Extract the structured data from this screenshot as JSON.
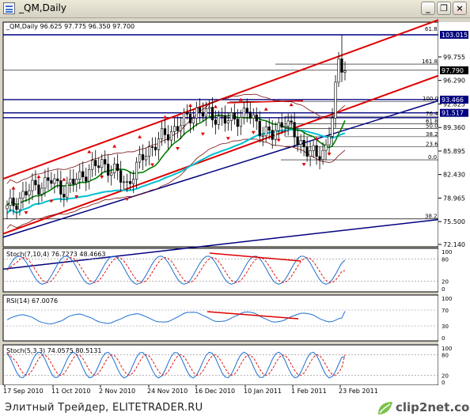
{
  "window": {
    "title": "_QM,Daily",
    "buttons": [
      "minimize",
      "restore",
      "close"
    ]
  },
  "footer": {
    "left_text": "Элитный Трейдер, ELITETRADER.RU",
    "logo_text": "clip2net.com"
  },
  "chart_data": {
    "type": "candlestick",
    "title": "_QM,Daily  96.625 97.775 96.350 97.700",
    "symbol": "_QM",
    "timeframe": "Daily",
    "ohlc": {
      "open": 96.625,
      "high": 97.775,
      "low": 96.35,
      "close": 97.7
    },
    "y_axis": {
      "range": [
        71.0,
        104.5
      ],
      "ticks": [
        "99.755",
        "96.290",
        "92.825",
        "89.360",
        "85.895",
        "82.430",
        "78.965",
        "75.500",
        "72.140"
      ]
    },
    "price_labels": [
      {
        "text": "103.015",
        "value": 103.015,
        "color": "#000080"
      },
      {
        "text": "97.790",
        "value": 97.79,
        "color": "#000000"
      },
      {
        "text": "93.466",
        "value": 93.466,
        "color": "#000080"
      },
      {
        "text": "91.517",
        "value": 91.517,
        "color": "#000080"
      }
    ],
    "x_axis": {
      "labels": [
        "17 Sep 2010",
        "11 Oct 2010",
        "2 Nov 2010",
        "24 Nov 2010",
        "16 Dec 2010",
        "10 Jan 2011",
        "1 Feb 2011",
        "23 Feb 2011"
      ]
    },
    "fibonacci_levels": [
      {
        "label": "61.8",
        "value": 103.5
      },
      {
        "label": "161.8",
        "value": 98.7
      },
      {
        "label": "100.0",
        "value": 93.2
      },
      {
        "label": "76.4",
        "value": 91.0
      },
      {
        "label": "61.8",
        "value": 89.9
      },
      {
        "label": "50.0",
        "value": 89.2
      },
      {
        "label": "38.2",
        "value": 88.0
      },
      {
        "label": "23.6",
        "value": 86.5
      },
      {
        "label": "0.0",
        "value": 84.6
      },
      {
        "label": "38.2",
        "value": 75.9
      }
    ],
    "indicators": [
      {
        "name": "Stoch(7,10,4)",
        "values": [
          76.7273,
          48.4663
        ],
        "header": "Stoch(7,10,4) 76.7273 48.4663",
        "scale": [
          "100",
          "80",
          "20",
          "0"
        ]
      },
      {
        "name": "RSI(14)",
        "values": [
          67.0076
        ],
        "header": "RSI(14) 67.0076",
        "scale": [
          "100",
          "70",
          "30",
          "0"
        ]
      },
      {
        "name": "Stoch(5,3,3)",
        "values": [
          74.0575,
          80.5131
        ],
        "header": "Stoch(5,3,3) 74.0575 80.5131",
        "scale": [
          "100",
          "80",
          "20",
          "0"
        ]
      }
    ],
    "colors": {
      "candle_up": "#000000",
      "candle_down": "#000000",
      "channel": "#e00000",
      "blue_line": "#000080",
      "cyan_ma": "#00c0d0",
      "green_ma": "#008000",
      "fractal": "#e00000",
      "indicator_main": "#1e6fd0",
      "indicator_signal": "#e00000"
    }
  }
}
